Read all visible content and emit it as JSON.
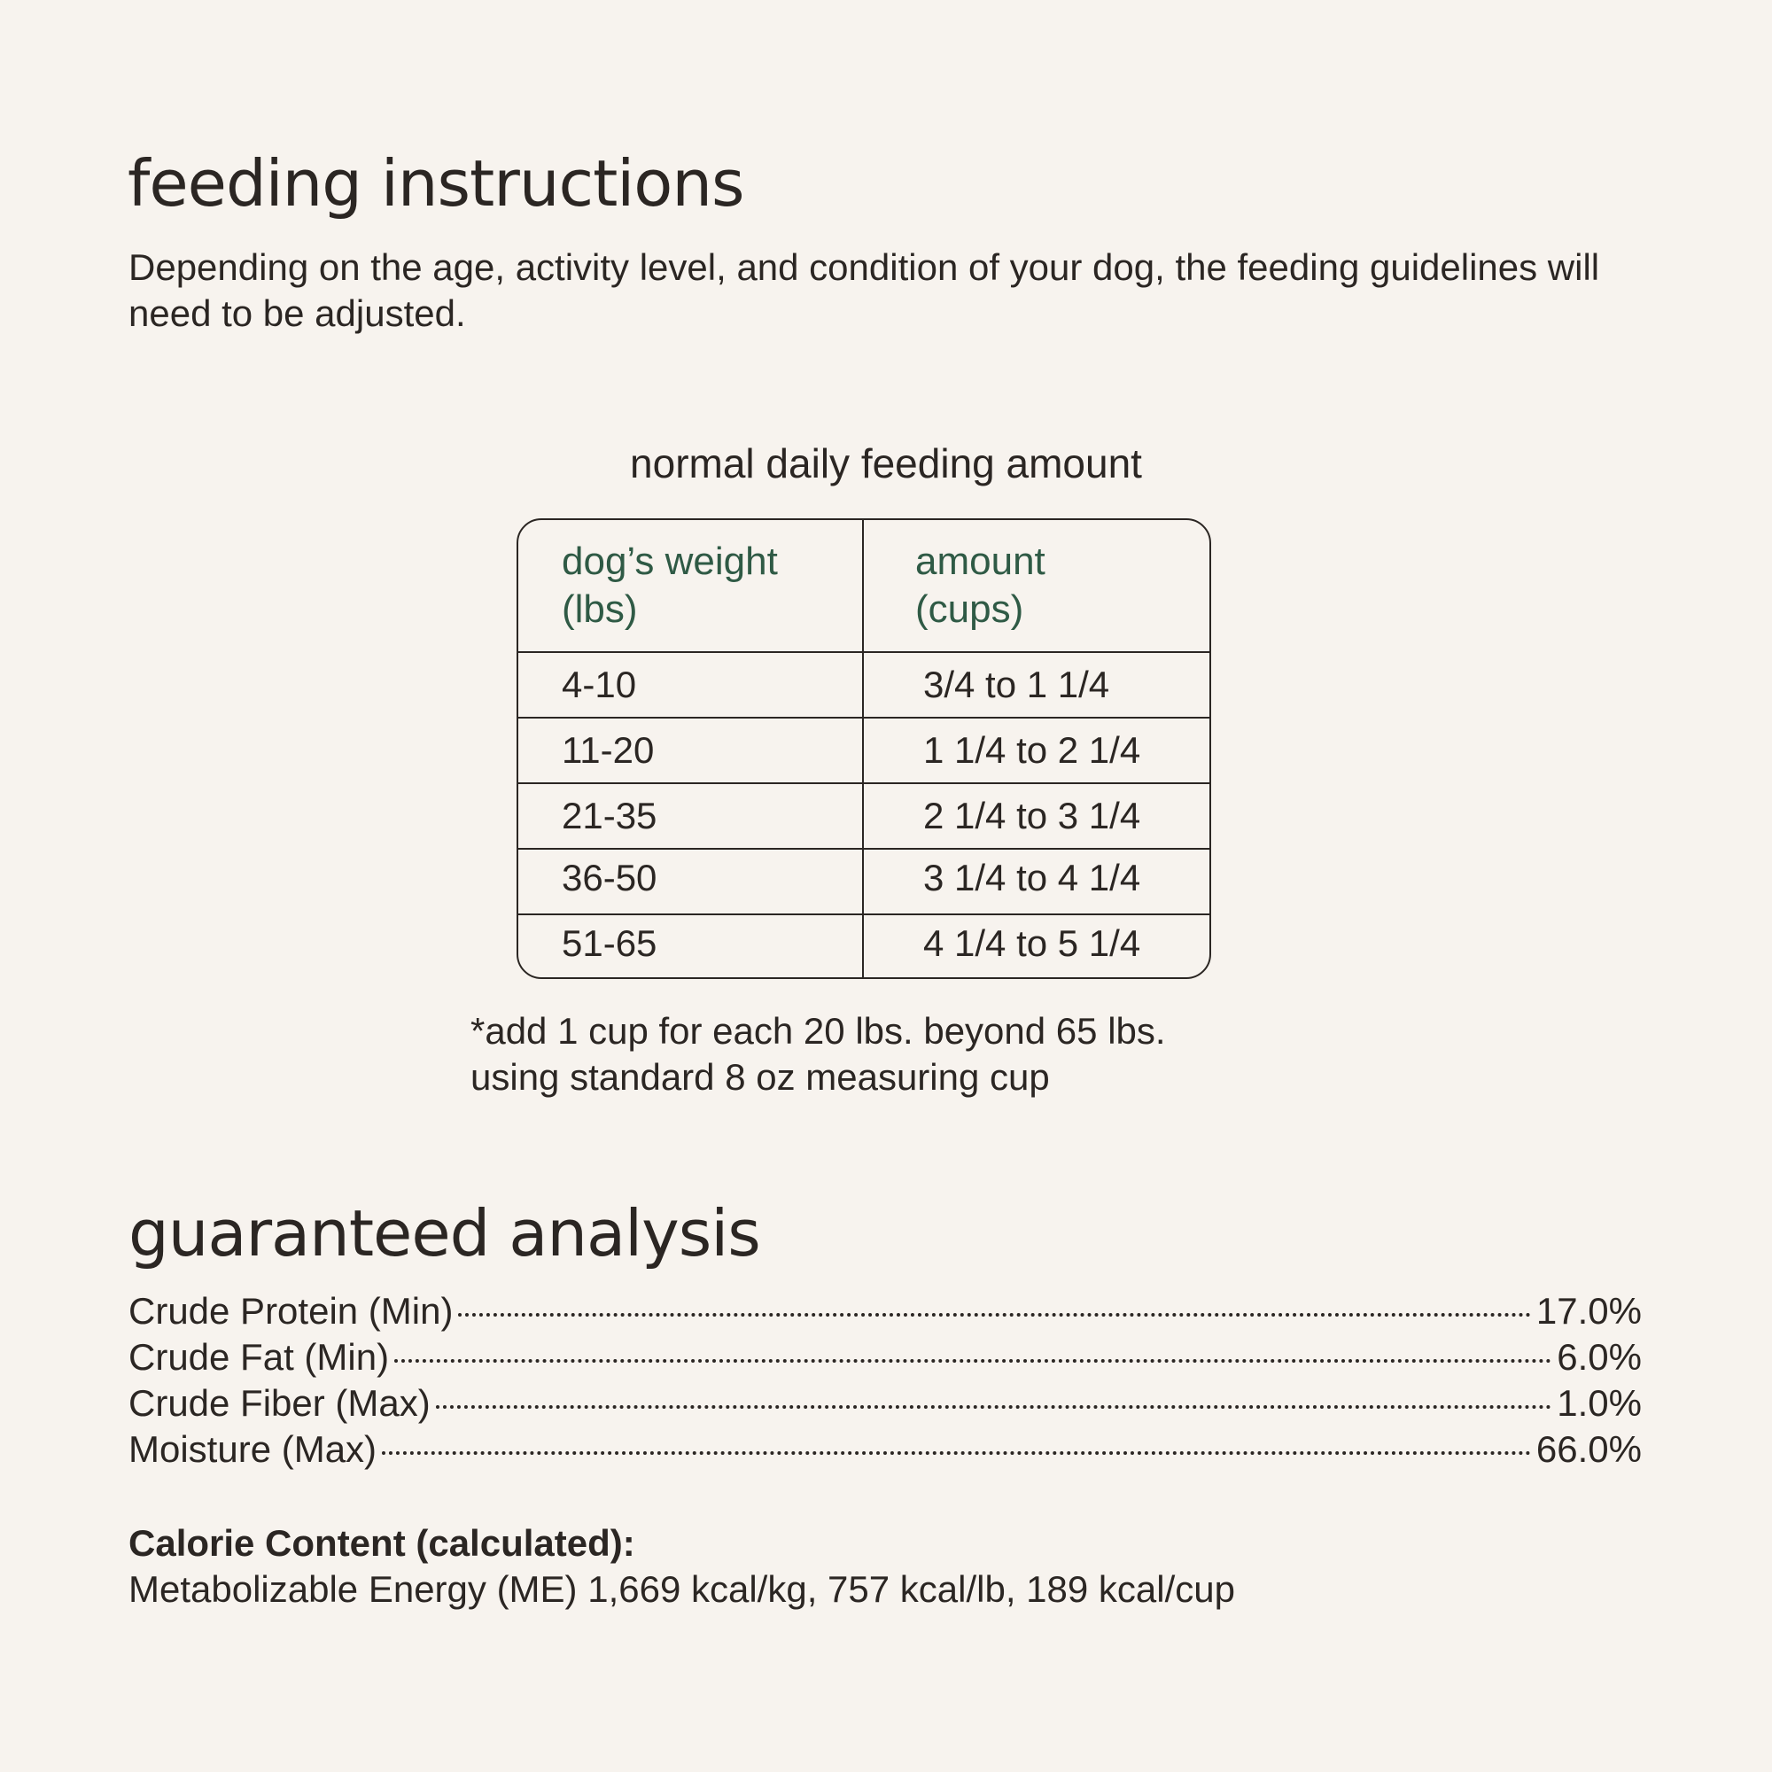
{
  "header": {
    "title": "feeding instructions",
    "text": "Depending on the age, activity level, and condition of your dog, the feeding guidelines will need to be adjusted."
  },
  "table": {
    "title": "normal daily feeding amount",
    "columns": [
      [
        "dog’s weight",
        "(lbs)"
      ],
      [
        "amount",
        "(cups)"
      ]
    ],
    "rows": [
      [
        "4-10",
        "3/4 to 1 1/4"
      ],
      [
        "11-20",
        "1 1/4 to 2 1/4"
      ],
      [
        "21-35",
        "2 1/4 to 3 1/4"
      ],
      [
        "36-50",
        "3 1/4 to 4 1/4"
      ],
      [
        "51-65",
        "4 1/4 to 5 1/4"
      ]
    ],
    "notes": [
      "*add 1 cup for each 20 lbs. beyond 65 lbs.",
      "using standard 8 oz measuring cup"
    ]
  },
  "analysis": {
    "title": "guaranteed analysis",
    "items": [
      {
        "name": "Crude Protein (Min)",
        "value": "17.0%"
      },
      {
        "name": "Crude Fat (Min)",
        "value": "6.0%"
      },
      {
        "name": "Crude Fiber (Max)",
        "value": "1.0%"
      },
      {
        "name": "Moisture (Max)",
        "value": "66.0%"
      }
    ],
    "calorie_heading": "Calorie Content (calculated):",
    "calorie_text": "Metabolizable Energy (ME) 1,669 kcal/kg, 757 kcal/lb, 189 kcal/cup"
  }
}
